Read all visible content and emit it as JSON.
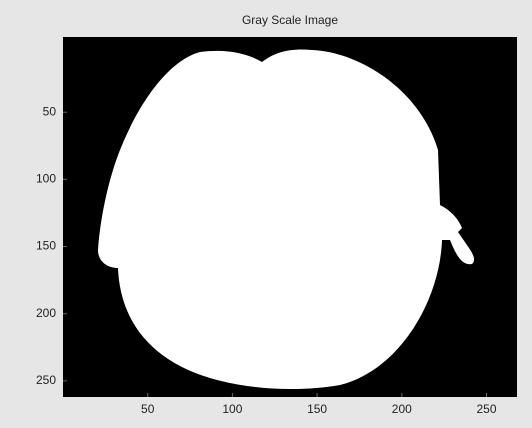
{
  "chart_data": {
    "type": "image",
    "title": "Gray Scale Image",
    "xlim": [
      0,
      268
    ],
    "ylim": [
      -6,
      262
    ],
    "xticks": [
      50,
      100,
      150,
      200,
      250
    ],
    "yticks": [
      50,
      100,
      150,
      200,
      250
    ],
    "y_reversed": true
  }
}
